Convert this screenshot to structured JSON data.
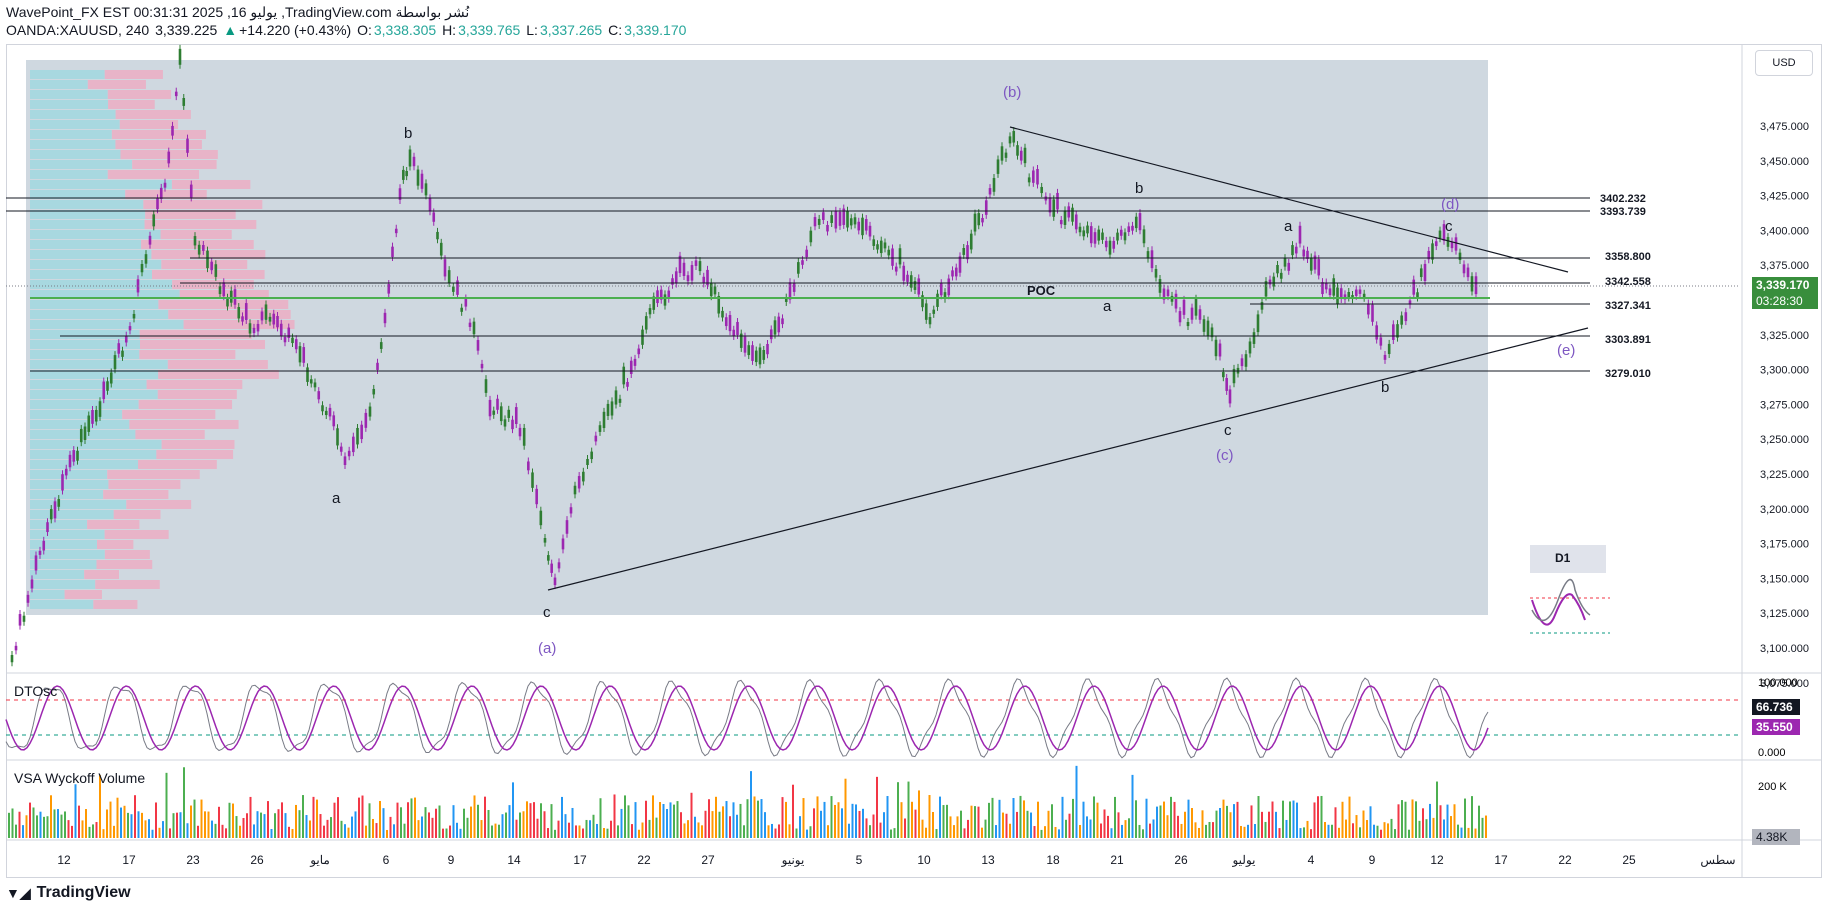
{
  "header": {
    "title": "WavePoint_FX EST 00:31:31 2025 ,16 يوليو ,TradingView.com نُشر بواسطة",
    "symbol": "OANDA:XAUUSD, 240",
    "last": "3,339.225",
    "arrow": "▲",
    "change": "+14.220 (+0.43%)",
    "o_label": "O:",
    "o": "3,338.305",
    "h_label": "H:",
    "h": "3,339.765",
    "l_label": "L:",
    "l": "3,337.265",
    "c_label": "C:",
    "c": "3,339.170"
  },
  "currency": "USD",
  "price_axis": [
    "3,475.000",
    "3,450.000",
    "3,425.000",
    "3,400.000",
    "3,375.000",
    "3,350.000",
    "3,325.000",
    "3,300.000",
    "3,275.000",
    "3,250.000",
    "3,225.000",
    "3,200.000",
    "3,175.000",
    "3,150.000",
    "3,125.000",
    "3,100.000",
    "3,075.000"
  ],
  "current_price": "3,339.170",
  "countdown": "03:28:30",
  "levels": [
    "3402.232",
    "3393.739",
    "3358.800",
    "3342.558",
    "3327.341",
    "3303.891",
    "3279.010"
  ],
  "poc": "POC",
  "waves": {
    "b1": "b",
    "a1": "a",
    "c1": "c",
    "wa": "(a)",
    "wb": "(b)",
    "b2": "b",
    "a2": "a",
    "c2": "c",
    "wc": "(c)",
    "a3": "a",
    "b3": "b",
    "c3": "c",
    "wd": "(d)",
    "we": "(e)"
  },
  "d1_label": "D1",
  "dtosc": {
    "label": "DTOsc",
    "axis": [
      "100.000",
      "0.000"
    ],
    "v1": "66.736",
    "v2": "35.550"
  },
  "vsa": {
    "label": "VSA Wyckoff Volume",
    "axis_top": "200 K",
    "value": "4.38K"
  },
  "time_axis": [
    "12",
    "17",
    "23",
    "26",
    "مايو",
    "6",
    "9",
    "14",
    "17",
    "22",
    "27",
    "يونيو",
    "5",
    "10",
    "13",
    "18",
    "21",
    "26",
    "يوليو",
    "4",
    "9",
    "12",
    "17",
    "22",
    "25",
    "سطس"
  ],
  "footer": {
    "brand": "TradingView"
  },
  "colors": {
    "bull": "#2e7d32",
    "bear": "#9c27b0",
    "wave": "#7e57c2",
    "poc": "#4caf50",
    "price_tag": "#388e3c"
  }
}
